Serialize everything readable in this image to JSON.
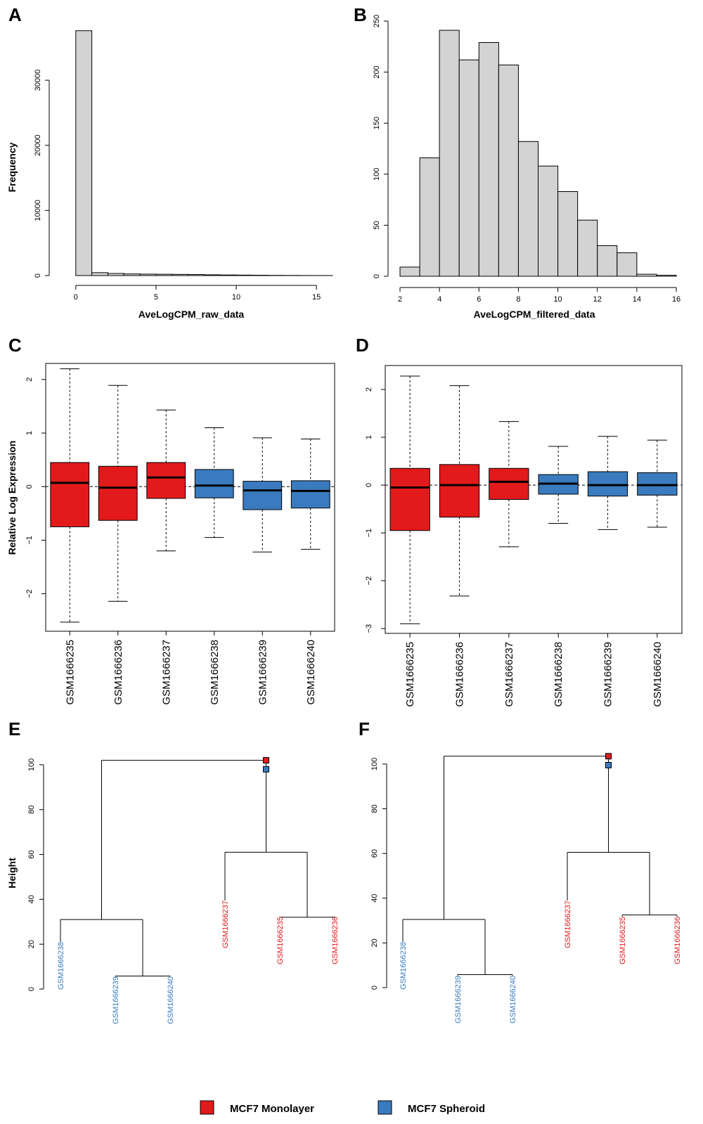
{
  "colors": {
    "monolayer": "#e31a1c",
    "spheroid": "#3a7bbf",
    "bar_fill": "#d3d3d3"
  },
  "panels": {
    "A": "A",
    "B": "B",
    "C": "C",
    "D": "D",
    "E": "E",
    "F": "F"
  },
  "legend": {
    "monolayer": "MCF7 Monolayer",
    "spheroid": "MCF7 Spheroid"
  },
  "chart_data": [
    {
      "id": "A",
      "type": "bar",
      "xlabel": "AveLogCPM_raw_data",
      "ylabel": "Frequency",
      "xlim": [
        -1,
        16
      ],
      "ylim": [
        0,
        38000
      ],
      "xticks": [
        0,
        5,
        10,
        15
      ],
      "yticks": [
        0,
        10000,
        20000,
        30000
      ],
      "bin_edges": [
        0,
        1,
        2,
        3,
        4,
        5,
        6,
        7,
        8,
        9,
        10,
        11,
        12,
        13,
        14,
        15,
        16
      ],
      "values": [
        37600,
        450,
        320,
        250,
        220,
        200,
        180,
        160,
        120,
        90,
        70,
        50,
        30,
        20,
        10,
        5
      ]
    },
    {
      "id": "B",
      "type": "bar",
      "xlabel": "AveLogCPM_filtered_data",
      "ylabel": "",
      "xlim": [
        2,
        16
      ],
      "ylim": [
        0,
        250
      ],
      "xticks": [
        2,
        4,
        6,
        8,
        10,
        12,
        14,
        16
      ],
      "yticks": [
        0,
        50,
        100,
        150,
        200,
        250
      ],
      "bin_edges": [
        2,
        3,
        4,
        5,
        6,
        7,
        8,
        9,
        10,
        11,
        12,
        13,
        14,
        15,
        16
      ],
      "values": [
        9,
        116,
        241,
        212,
        229,
        207,
        132,
        108,
        83,
        55,
        30,
        23,
        2,
        1
      ]
    },
    {
      "id": "C",
      "type": "box",
      "ylabel": "Relative Log Expression",
      "ylim": [
        -2.7,
        2.3
      ],
      "yticks": [
        -2,
        -1,
        0,
        1,
        2
      ],
      "categories": [
        "GSM1666235",
        "GSM1666236",
        "GSM1666237",
        "GSM1666238",
        "GSM1666239",
        "GSM1666240"
      ],
      "groups": [
        "monolayer",
        "monolayer",
        "monolayer",
        "spheroid",
        "spheroid",
        "spheroid"
      ],
      "boxes": [
        {
          "whisker_low": -2.53,
          "q1": -0.75,
          "median": 0.07,
          "q3": 0.45,
          "whisker_high": 2.2
        },
        {
          "whisker_low": -2.14,
          "q1": -0.63,
          "median": -0.02,
          "q3": 0.38,
          "whisker_high": 1.89
        },
        {
          "whisker_low": -1.2,
          "q1": -0.22,
          "median": 0.17,
          "q3": 0.45,
          "whisker_high": 1.43
        },
        {
          "whisker_low": -0.95,
          "q1": -0.21,
          "median": 0.02,
          "q3": 0.32,
          "whisker_high": 1.1
        },
        {
          "whisker_low": -1.22,
          "q1": -0.43,
          "median": -0.07,
          "q3": 0.1,
          "whisker_high": 0.91
        },
        {
          "whisker_low": -1.17,
          "q1": -0.4,
          "median": -0.08,
          "q3": 0.11,
          "whisker_high": 0.89
        }
      ]
    },
    {
      "id": "D",
      "type": "box",
      "ylabel": "",
      "ylim": [
        -3.1,
        2.5
      ],
      "yticks": [
        -3,
        -2,
        -1,
        0,
        1,
        2
      ],
      "categories": [
        "GSM1666235",
        "GSM1666236",
        "GSM1666237",
        "GSM1666238",
        "GSM1666239",
        "GSM1666240"
      ],
      "groups": [
        "monolayer",
        "monolayer",
        "monolayer",
        "spheroid",
        "spheroid",
        "spheroid"
      ],
      "boxes": [
        {
          "whisker_low": -2.9,
          "q1": -0.95,
          "median": -0.05,
          "q3": 0.35,
          "whisker_high": 2.28
        },
        {
          "whisker_low": -2.32,
          "q1": -0.67,
          "median": 0.0,
          "q3": 0.43,
          "whisker_high": 2.08
        },
        {
          "whisker_low": -1.29,
          "q1": -0.3,
          "median": 0.07,
          "q3": 0.35,
          "whisker_high": 1.33
        },
        {
          "whisker_low": -0.8,
          "q1": -0.19,
          "median": 0.03,
          "q3": 0.22,
          "whisker_high": 0.81
        },
        {
          "whisker_low": -0.93,
          "q1": -0.23,
          "median": 0.0,
          "q3": 0.28,
          "whisker_high": 1.02
        },
        {
          "whisker_low": -0.88,
          "q1": -0.21,
          "median": 0.0,
          "q3": 0.26,
          "whisker_high": 0.94
        }
      ]
    },
    {
      "id": "E",
      "type": "dendrogram",
      "ylabel": "Height",
      "ylim": [
        0,
        105
      ],
      "yticks": [
        0,
        20,
        40,
        60,
        80,
        100
      ],
      "leaves": [
        {
          "label": "GSM1666238",
          "group": "spheroid"
        },
        {
          "label": "GSM1666239",
          "group": "spheroid"
        },
        {
          "label": "GSM1666240",
          "group": "spheroid"
        },
        {
          "label": "GSM1666237",
          "group": "monolayer"
        },
        {
          "label": "GSM1666235",
          "group": "monolayer"
        },
        {
          "label": "GSM1666236",
          "group": "monolayer"
        }
      ],
      "merge_heights": {
        "239_240": 5.8,
        "238_group": 31,
        "235_236": 32,
        "237_group": 61,
        "root": 102
      },
      "marker_heights": {
        "monolayer": 102,
        "spheroid": 98
      }
    },
    {
      "id": "F",
      "type": "dendrogram",
      "ylabel": "",
      "ylim": [
        0,
        105
      ],
      "yticks": [
        0,
        20,
        40,
        60,
        80,
        100
      ],
      "leaves": [
        {
          "label": "GSM1666238",
          "group": "spheroid"
        },
        {
          "label": "GSM1666239",
          "group": "spheroid"
        },
        {
          "label": "GSM1666240",
          "group": "spheroid"
        },
        {
          "label": "GSM1666237",
          "group": "monolayer"
        },
        {
          "label": "GSM1666235",
          "group": "monolayer"
        },
        {
          "label": "GSM1666236",
          "group": "monolayer"
        }
      ],
      "merge_heights": {
        "239_240": 5.8,
        "238_group": 30.5,
        "235_236": 32.5,
        "237_group": 60.5,
        "root": 103.5
      },
      "marker_heights": {
        "monolayer": 103.5,
        "spheroid": 99.5
      }
    }
  ]
}
